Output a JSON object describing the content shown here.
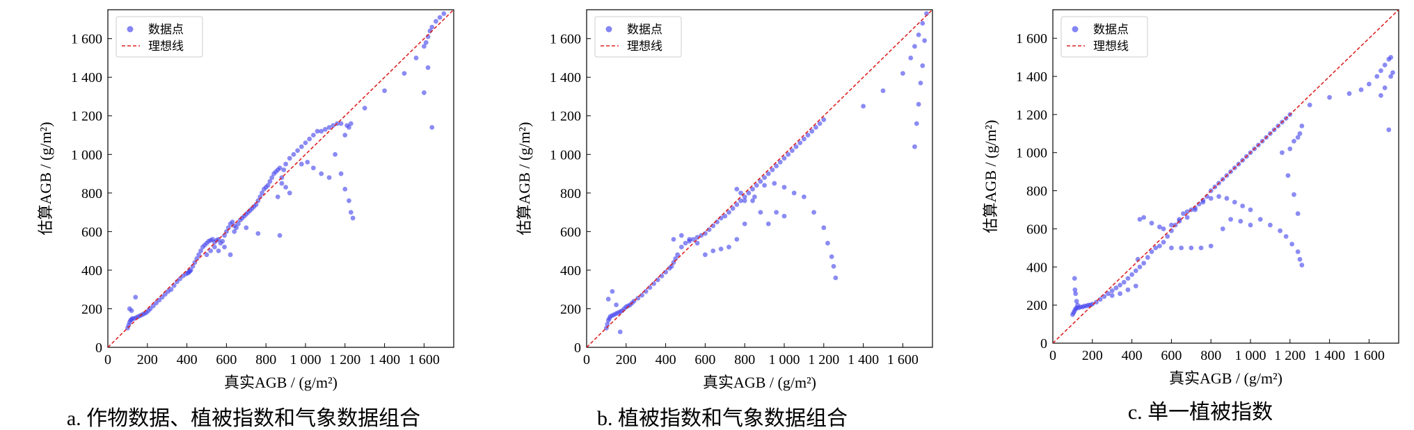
{
  "figure": {
    "captions": [
      "a. 作物数据、植被指数和气象数据组合",
      "b. 植被指数和气象数据组合",
      "c. 单一植被指数"
    ]
  },
  "colors": {
    "points": "#4444ee",
    "ideal": "#dd2222",
    "axis": "#000000"
  },
  "chart_data": [
    {
      "type": "scatter",
      "title": "a. 作物数据、植被指数和气象数据组合",
      "xlabel": "真实AGB / (g/m²)",
      "ylabel": "估算AGB / (g/m²)",
      "xlim": [
        0,
        1750
      ],
      "ylim": [
        0,
        1750
      ],
      "xticks": [
        0,
        200,
        400,
        600,
        800,
        1000,
        1200,
        1400,
        1600
      ],
      "xtick_labels": [
        "0",
        "200",
        "400",
        "600",
        "800",
        "1 000",
        "1 200",
        "1 400",
        "1 600"
      ],
      "yticks": [
        0,
        200,
        400,
        600,
        800,
        1000,
        1200,
        1400,
        1600
      ],
      "ytick_labels": [
        "0",
        "200",
        "400",
        "600",
        "800",
        "1 000",
        "1 200",
        "1 400",
        "1 600"
      ],
      "legend": {
        "position": "top-left",
        "entries": [
          "数据点",
          "理想线"
        ]
      },
      "series": [
        {
          "name": "数据点",
          "x": [
            100,
            105,
            110,
            115,
            120,
            125,
            135,
            145,
            155,
            165,
            175,
            185,
            195,
            205,
            215,
            230,
            245,
            260,
            275,
            290,
            305,
            320,
            335,
            350,
            365,
            380,
            395,
            405,
            410,
            415,
            420,
            430,
            440,
            450,
            460,
            470,
            480,
            490,
            500,
            510,
            520,
            530,
            540,
            550,
            560,
            570,
            580,
            590,
            600,
            610,
            620,
            630,
            640,
            650,
            660,
            670,
            680,
            690,
            700,
            710,
            720,
            730,
            740,
            750,
            760,
            770,
            780,
            790,
            800,
            810,
            820,
            830,
            840,
            850,
            860,
            870,
            880,
            890,
            900,
            920,
            940,
            960,
            980,
            1000,
            1020,
            1040,
            1060,
            1080,
            1100,
            1120,
            1140,
            1160,
            1180,
            1200,
            1210,
            1220,
            1230,
            1300,
            1400,
            1500,
            1560,
            1600,
            1610,
            1620,
            1630,
            1640,
            1660,
            1680,
            1700,
            110,
            120,
            140,
            870,
            880,
            900,
            920,
            860,
            1150,
            1180,
            1200,
            1220,
            1230,
            1240,
            1600,
            1620,
            1640,
            640,
            700,
            760,
            560,
            590,
            620,
            500,
            520,
            540,
            980,
            1010,
            1040,
            1080,
            1120
          ],
          "y": [
            100,
            115,
            130,
            140,
            145,
            150,
            150,
            155,
            160,
            165,
            170,
            175,
            180,
            190,
            200,
            215,
            230,
            245,
            260,
            275,
            290,
            300,
            320,
            340,
            355,
            370,
            380,
            385,
            390,
            395,
            400,
            420,
            440,
            460,
            480,
            500,
            520,
            530,
            540,
            550,
            555,
            560,
            545,
            555,
            560,
            540,
            550,
            580,
            600,
            620,
            640,
            650,
            630,
            620,
            640,
            660,
            670,
            680,
            690,
            700,
            710,
            720,
            730,
            740,
            760,
            780,
            800,
            820,
            830,
            840,
            860,
            880,
            900,
            910,
            920,
            930,
            880,
            920,
            950,
            980,
            1000,
            1020,
            1040,
            1060,
            1080,
            1100,
            1120,
            1120,
            1130,
            1140,
            1150,
            1160,
            1160,
            1100,
            1150,
            1140,
            1160,
            1240,
            1330,
            1420,
            1500,
            1560,
            1580,
            1610,
            1640,
            1660,
            1690,
            1710,
            1730,
            200,
            190,
            260,
            580,
            850,
            830,
            800,
            780,
            1000,
            900,
            820,
            760,
            700,
            670,
            1320,
            1450,
            1140,
            600,
            620,
            590,
            500,
            520,
            480,
            480,
            500,
            520,
            950,
            960,
            930,
            900,
            880
          ]
        }
      ],
      "ideal_line": {
        "name": "理想线",
        "x": [
          0,
          1750
        ],
        "y": [
          0,
          1750
        ]
      }
    },
    {
      "type": "scatter",
      "title": "b. 植被指数和气象数据组合",
      "xlabel": "真实AGB / (g/m²)",
      "ylabel": "估算AGB / (g/m²)",
      "xlim": [
        0,
        1750
      ],
      "ylim": [
        0,
        1750
      ],
      "xticks": [
        0,
        200,
        400,
        600,
        800,
        1000,
        1200,
        1400,
        1600
      ],
      "xtick_labels": [
        "0",
        "200",
        "400",
        "600",
        "800",
        "1 000",
        "1 200",
        "1 400",
        "1 600"
      ],
      "yticks": [
        0,
        200,
        400,
        600,
        800,
        1000,
        1200,
        1400,
        1600
      ],
      "ytick_labels": [
        "0",
        "200",
        "400",
        "600",
        "800",
        "1 000",
        "1 200",
        "1 400",
        "1 600"
      ],
      "legend": {
        "position": "top-left",
        "entries": [
          "数据点",
          "理想线"
        ]
      },
      "series": [
        {
          "name": "数据点",
          "x": [
            100,
            105,
            110,
            115,
            120,
            130,
            140,
            150,
            160,
            170,
            180,
            190,
            200,
            210,
            220,
            230,
            240,
            260,
            280,
            300,
            320,
            340,
            360,
            380,
            400,
            420,
            430,
            440,
            450,
            460,
            480,
            500,
            520,
            540,
            560,
            580,
            600,
            620,
            640,
            660,
            680,
            700,
            720,
            740,
            760,
            780,
            800,
            820,
            840,
            860,
            880,
            900,
            920,
            940,
            960,
            980,
            1000,
            1020,
            1040,
            1060,
            1080,
            1100,
            1120,
            1140,
            1160,
            1180,
            1200,
            1400,
            1500,
            1600,
            1640,
            1660,
            1680,
            1700,
            1720,
            110,
            130,
            150,
            170,
            600,
            640,
            680,
            720,
            760,
            800,
            850,
            900,
            950,
            1000,
            1050,
            1100,
            1150,
            1200,
            1220,
            1240,
            1250,
            1260,
            1660,
            1670,
            1680,
            1690,
            1700,
            1710,
            440,
            480,
            520,
            560,
            760,
            780,
            800,
            840,
            880,
            920,
            960,
            1000
          ],
          "y": [
            100,
            120,
            140,
            150,
            160,
            165,
            170,
            175,
            180,
            185,
            190,
            200,
            210,
            215,
            220,
            230,
            240,
            255,
            270,
            290,
            310,
            330,
            350,
            370,
            390,
            410,
            420,
            440,
            460,
            480,
            520,
            540,
            550,
            560,
            570,
            580,
            590,
            610,
            630,
            650,
            670,
            680,
            700,
            720,
            740,
            760,
            780,
            800,
            820,
            840,
            860,
            880,
            900,
            920,
            940,
            960,
            980,
            1000,
            1020,
            1040,
            1060,
            1080,
            1100,
            1120,
            1140,
            1160,
            1180,
            1250,
            1330,
            1420,
            1500,
            1560,
            1620,
            1680,
            1730,
            250,
            290,
            220,
            80,
            480,
            500,
            510,
            520,
            560,
            640,
            780,
            840,
            850,
            830,
            800,
            780,
            700,
            620,
            540,
            470,
            420,
            360,
            1040,
            1160,
            1260,
            1370,
            1460,
            1590,
            560,
            580,
            560,
            540,
            820,
            800,
            760,
            760,
            700,
            640,
            700,
            680
          ]
        }
      ],
      "ideal_line": {
        "name": "理想线",
        "x": [
          0,
          1750
        ],
        "y": [
          0,
          1750
        ]
      }
    },
    {
      "type": "scatter",
      "title": "c. 单一植被指数",
      "xlabel": "真实AGB / (g/m²)",
      "ylabel": "估算AGB / (g/m²)",
      "xlim": [
        0,
        1750
      ],
      "ylim": [
        0,
        1750
      ],
      "xticks": [
        0,
        200,
        400,
        600,
        800,
        1000,
        1200,
        1400,
        1600
      ],
      "xtick_labels": [
        "0",
        "200",
        "400",
        "600",
        "800",
        "1 000",
        "1 200",
        "1 400",
        "1 600"
      ],
      "yticks": [
        0,
        200,
        400,
        600,
        800,
        1000,
        1200,
        1400,
        1600
      ],
      "ytick_labels": [
        "0",
        "200",
        "400",
        "600",
        "800",
        "1 000",
        "1 200",
        "1 400",
        "1 600"
      ],
      "legend": {
        "position": "top-left",
        "entries": [
          "数据点",
          "理想线"
        ]
      },
      "series": [
        {
          "name": "数据点",
          "x": [
            100,
            105,
            110,
            115,
            120,
            130,
            140,
            150,
            160,
            170,
            180,
            190,
            200,
            220,
            240,
            260,
            280,
            300,
            320,
            340,
            360,
            380,
            400,
            420,
            440,
            460,
            480,
            500,
            520,
            540,
            560,
            580,
            600,
            620,
            640,
            660,
            680,
            700,
            720,
            740,
            760,
            780,
            800,
            820,
            840,
            860,
            880,
            900,
            920,
            940,
            960,
            980,
            1000,
            1020,
            1040,
            1060,
            1080,
            1100,
            1120,
            1140,
            1160,
            1180,
            1200,
            1300,
            1400,
            1500,
            1560,
            1600,
            1640,
            1660,
            1680,
            1700,
            1710,
            110,
            112,
            115,
            120,
            125,
            300,
            340,
            380,
            420,
            430,
            440,
            460,
            500,
            540,
            560,
            600,
            640,
            680,
            720,
            760,
            800,
            840,
            880,
            920,
            960,
            1000,
            1050,
            1100,
            1150,
            1180,
            1210,
            1240,
            1250,
            1260,
            1240,
            1220,
            1190,
            1160,
            600,
            650,
            700,
            750,
            800,
            860,
            900,
            950,
            1000,
            1200,
            1220,
            1240,
            1250,
            1260,
            1660,
            1680,
            1700,
            1710,
            1720
          ],
          "y": [
            150,
            160,
            170,
            180,
            185,
            185,
            190,
            190,
            195,
            195,
            200,
            200,
            205,
            215,
            230,
            245,
            260,
            275,
            290,
            305,
            320,
            340,
            360,
            380,
            400,
            420,
            450,
            480,
            500,
            510,
            530,
            560,
            590,
            620,
            650,
            680,
            690,
            700,
            710,
            730,
            750,
            770,
            800,
            820,
            840,
            860,
            880,
            900,
            920,
            940,
            960,
            980,
            1000,
            1020,
            1040,
            1060,
            1080,
            1100,
            1120,
            1140,
            1160,
            1180,
            1200,
            1250,
            1290,
            1310,
            1330,
            1360,
            1400,
            1430,
            1460,
            1490,
            1500,
            340,
            280,
            260,
            220,
            200,
            250,
            260,
            280,
            300,
            440,
            650,
            660,
            630,
            610,
            600,
            620,
            640,
            660,
            700,
            740,
            760,
            770,
            760,
            740,
            720,
            700,
            650,
            620,
            590,
            560,
            520,
            480,
            440,
            410,
            680,
            780,
            880,
            1000,
            500,
            500,
            500,
            500,
            510,
            600,
            650,
            640,
            620,
            1020,
            1060,
            1080,
            1100,
            1140,
            1300,
            1340,
            1120,
            1400,
            1420
          ]
        }
      ],
      "ideal_line": {
        "name": "理想线",
        "x": [
          0,
          1750
        ],
        "y": [
          0,
          1750
        ]
      }
    }
  ]
}
